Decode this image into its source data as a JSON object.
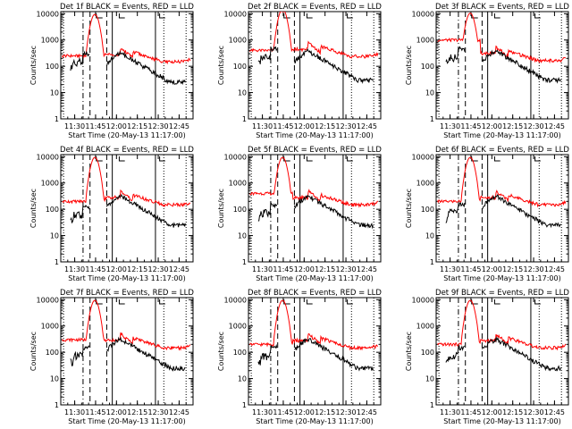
{
  "chart_data": {
    "type": "line",
    "layout_hint": "3x3 grid of small multiples",
    "x_tick_labels": [
      "11:30",
      "11:45",
      "12:00",
      "12:15",
      "12:30",
      "12:45"
    ],
    "x_tick_values_min": [
      30,
      45,
      60,
      75,
      90,
      105
    ],
    "xlim_min": [
      20,
      115
    ],
    "y_scale": "log",
    "ylim": [
      1,
      12000
    ],
    "y_tick_labels": [
      "1",
      "10",
      "100",
      "1000",
      "10000"
    ],
    "y_tick_values": [
      1,
      10,
      100,
      1000,
      10000
    ],
    "ylabel": "Counts/sec",
    "xlabel": "Start Time (20-May-13 11:17:00)",
    "marker_lines_min": {
      "dashdot": 36,
      "dashed": [
        41,
        53
      ],
      "solid": [
        57,
        88
      ],
      "dotted": [
        94,
        110
      ],
      "dotted_left": 22
    },
    "panels": [
      {
        "title": "Det 1f BLACK = Events, RED = LLD",
        "events_scale": 1.0,
        "lld_scale": 1.0,
        "lld_pre": 250,
        "events_pre": 200
      },
      {
        "title": "Det 2f BLACK = Events, RED = LLD",
        "events_scale": 1.2,
        "lld_scale": 1.6,
        "lld_pre": 400,
        "events_pre": 300
      },
      {
        "title": "Det 3f BLACK = Events, RED = LLD",
        "events_scale": 1.2,
        "lld_scale": 1.1,
        "lld_pre": 1000,
        "events_pre": 300
      },
      {
        "title": "Det 4f BLACK = Events, RED = LLD",
        "events_scale": 1.0,
        "lld_scale": 1.0,
        "lld_pre": 200,
        "events_pre": 80
      },
      {
        "title": "Det 5f BLACK = Events, RED = LLD",
        "events_scale": 1.0,
        "lld_scale": 1.0,
        "lld_pre": 400,
        "events_pre": 100
      },
      {
        "title": "Det 6f BLACK = Events, RED = LLD",
        "events_scale": 1.0,
        "lld_scale": 1.0,
        "lld_pre": 200,
        "events_pre": 100
      },
      {
        "title": "Det 7f BLACK = Events, RED = LLD",
        "events_scale": 1.0,
        "lld_scale": 1.0,
        "lld_pre": 300,
        "events_pre": 100
      },
      {
        "title": "Det 8f BLACK = Events, RED = LLD",
        "events_scale": 1.0,
        "lld_scale": 1.0,
        "lld_pre": 200,
        "events_pre": 100
      },
      {
        "title": "Det 9f BLACK = Events, RED = LLD",
        "events_scale": 1.0,
        "lld_scale": 1.0,
        "lld_pre": 200,
        "events_pre": 100
      }
    ],
    "series": [
      {
        "name": "Events",
        "color": "#000000"
      },
      {
        "name": "LLD",
        "color": "#ff0000"
      }
    ],
    "grid": false
  }
}
